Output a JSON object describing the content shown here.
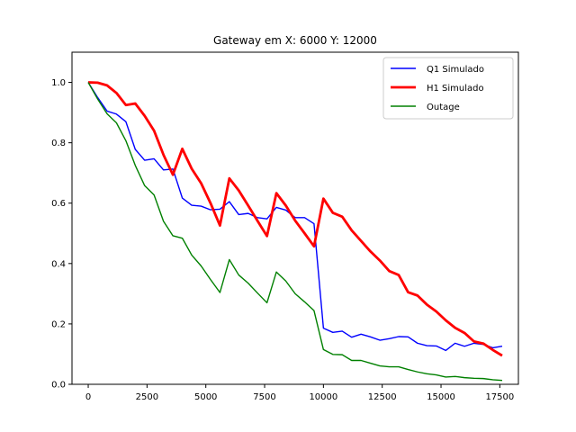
{
  "chart_data": {
    "type": "line",
    "title": "Gateway em X: 6000 Y: 12000",
    "xlabel": "",
    "ylabel": "",
    "xlim": [
      -690,
      18290
    ],
    "ylim": [
      0,
      1.1
    ],
    "xticks": [
      0,
      2500,
      5000,
      7500,
      10000,
      12500,
      15000,
      17500
    ],
    "xtick_labels": [
      "0",
      "2500",
      "5000",
      "7500",
      "10000",
      "12500",
      "15000",
      "17500"
    ],
    "yticks": [
      0.0,
      0.2,
      0.4,
      0.6,
      0.8,
      1.0
    ],
    "ytick_labels": [
      "0.0",
      "0.2",
      "0.4",
      "0.6",
      "0.8",
      "1.0"
    ],
    "grid": false,
    "legend_position": "top-right",
    "x": [
      0,
      400,
      800,
      1200,
      1600,
      2000,
      2400,
      2800,
      3200,
      3600,
      4000,
      4400,
      4800,
      5200,
      5600,
      6000,
      6400,
      6800,
      7200,
      7600,
      8000,
      8400,
      8800,
      9200,
      9600,
      10000,
      10400,
      10800,
      11200,
      11600,
      12000,
      12400,
      12800,
      13200,
      13600,
      14000,
      14400,
      14800,
      15200,
      15600,
      16000,
      16400,
      16800,
      17200,
      17600
    ],
    "series": [
      {
        "name": "Q1 Simulado",
        "color": "#0000ff",
        "linewidth": 1,
        "values": [
          1.0,
          0.95,
          0.905,
          0.895,
          0.87,
          0.778,
          0.742,
          0.747,
          0.71,
          0.713,
          0.617,
          0.593,
          0.59,
          0.578,
          0.58,
          0.605,
          0.562,
          0.566,
          0.552,
          0.548,
          0.586,
          0.577,
          0.552,
          0.552,
          0.532,
          0.186,
          0.172,
          0.176,
          0.156,
          0.166,
          0.157,
          0.146,
          0.151,
          0.158,
          0.157,
          0.136,
          0.128,
          0.127,
          0.112,
          0.136,
          0.126,
          0.136,
          0.132,
          0.121,
          0.126
        ]
      },
      {
        "name": "H1 Simulado",
        "color": "#ff0000",
        "linewidth": 2,
        "values": [
          1.0,
          0.999,
          0.99,
          0.965,
          0.925,
          0.93,
          0.889,
          0.84,
          0.76,
          0.694,
          0.78,
          0.714,
          0.666,
          0.6,
          0.526,
          0.682,
          0.642,
          0.592,
          0.541,
          0.491,
          0.633,
          0.592,
          0.542,
          0.5,
          0.457,
          0.615,
          0.568,
          0.555,
          0.51,
          0.475,
          0.44,
          0.41,
          0.375,
          0.362,
          0.305,
          0.294,
          0.264,
          0.241,
          0.212,
          0.187,
          0.17,
          0.142,
          0.135,
          0.114,
          0.095
        ]
      },
      {
        "name": "Outage",
        "color": "#008000",
        "linewidth": 1,
        "values": [
          1.0,
          0.945,
          0.896,
          0.866,
          0.807,
          0.725,
          0.658,
          0.627,
          0.54,
          0.492,
          0.484,
          0.428,
          0.392,
          0.347,
          0.304,
          0.413,
          0.362,
          0.335,
          0.302,
          0.27,
          0.372,
          0.342,
          0.3,
          0.273,
          0.244,
          0.115,
          0.099,
          0.098,
          0.079,
          0.079,
          0.07,
          0.061,
          0.058,
          0.058,
          0.049,
          0.041,
          0.035,
          0.031,
          0.024,
          0.026,
          0.022,
          0.02,
          0.019,
          0.015,
          0.013
        ]
      }
    ]
  }
}
